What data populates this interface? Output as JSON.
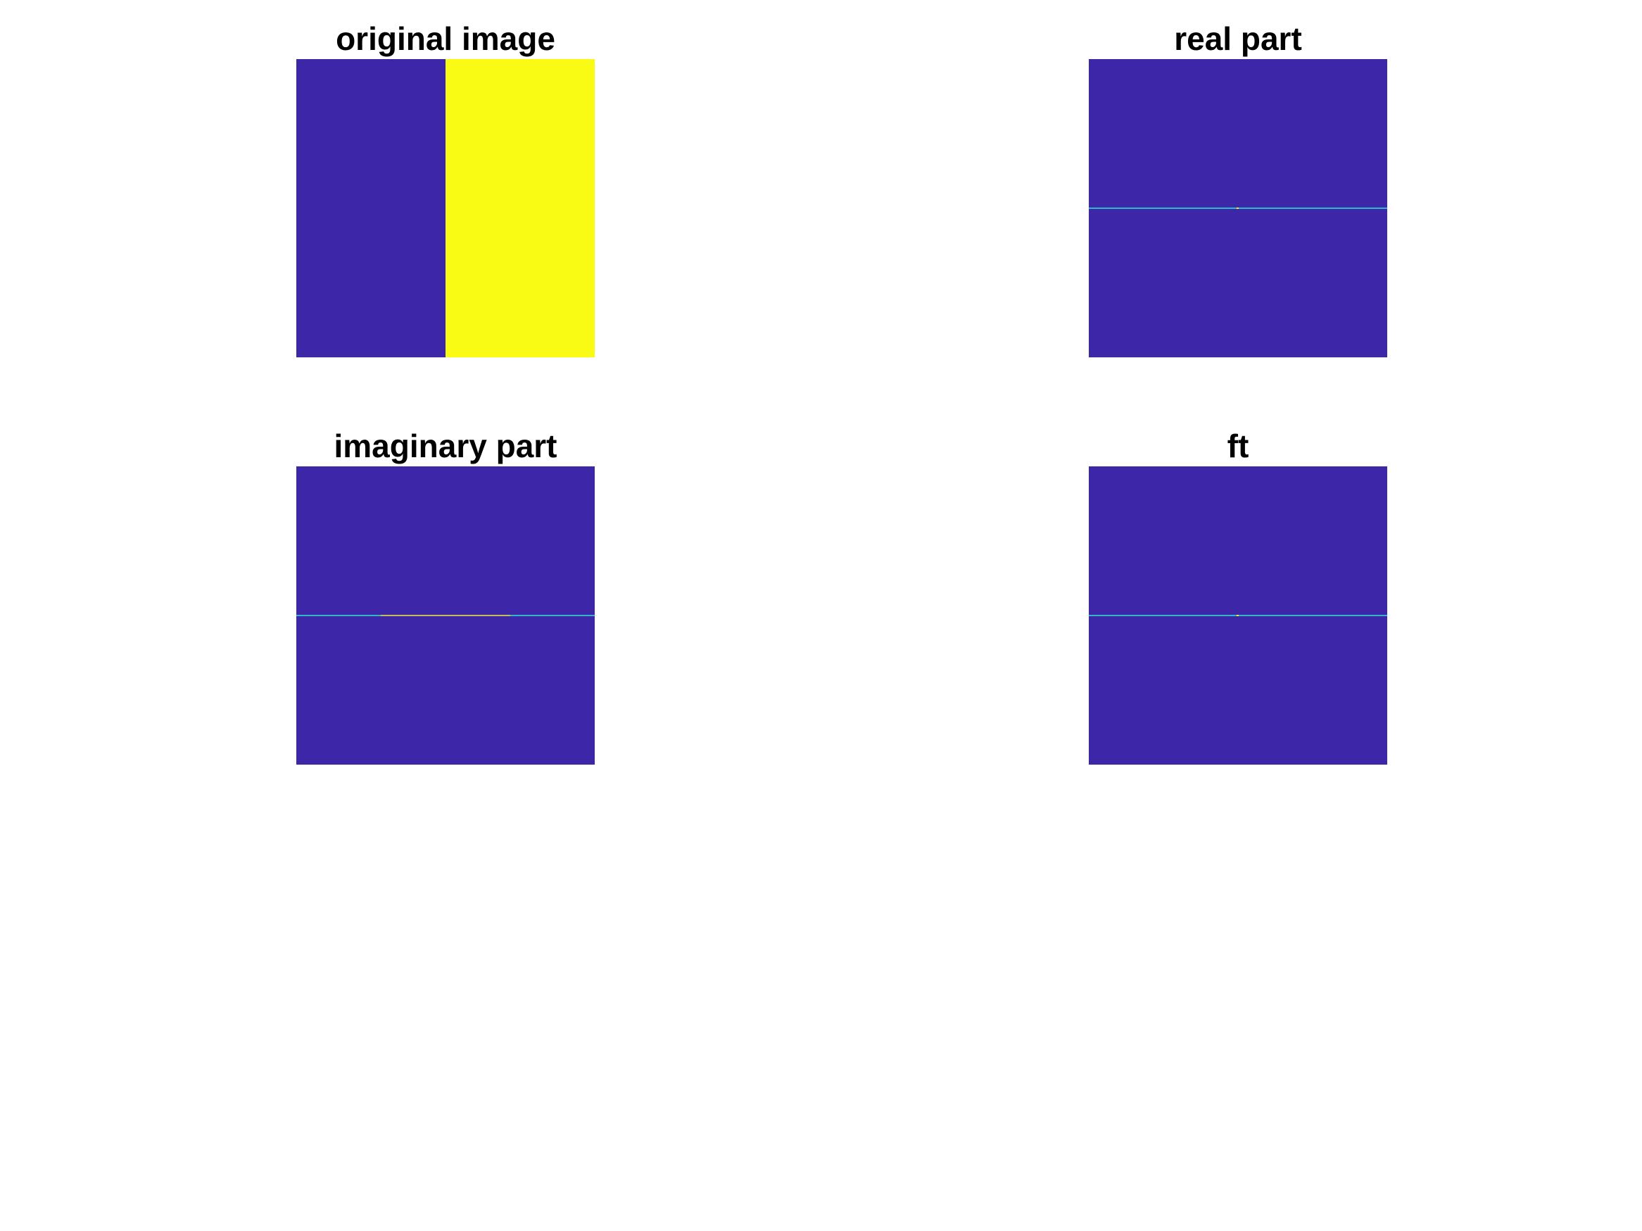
{
  "figure": {
    "background": "#ffffff"
  },
  "colors": {
    "low": "#3e26a8",
    "high": "#f9fb15",
    "mid_cyan": "#2fb8c8",
    "mid_yellow": "#e6c030",
    "peak": "#fde725"
  },
  "chart_data": [
    {
      "type": "heatmap",
      "title": "original image",
      "colormap": "parula",
      "axes_visible": false,
      "description_fields": {
        "left_half_value": "low",
        "right_half_value": "high"
      },
      "split_fraction": 0.5
    },
    {
      "type": "heatmap",
      "title": "real part",
      "colormap": "parula",
      "axes_visible": false,
      "background_level": "low",
      "horizontal_line_level": "mid_cyan",
      "center_peak": true
    },
    {
      "type": "heatmap",
      "title": "imaginary part",
      "colormap": "parula",
      "axes_visible": false,
      "background_level": "low",
      "horizontal_line_level": "mid_cyan",
      "center_band_level": "mid_yellow"
    },
    {
      "type": "heatmap",
      "title": "ft",
      "colormap": "parula",
      "axes_visible": false,
      "background_level": "low",
      "horizontal_line_level": "mid_cyan",
      "center_peak": true
    }
  ]
}
